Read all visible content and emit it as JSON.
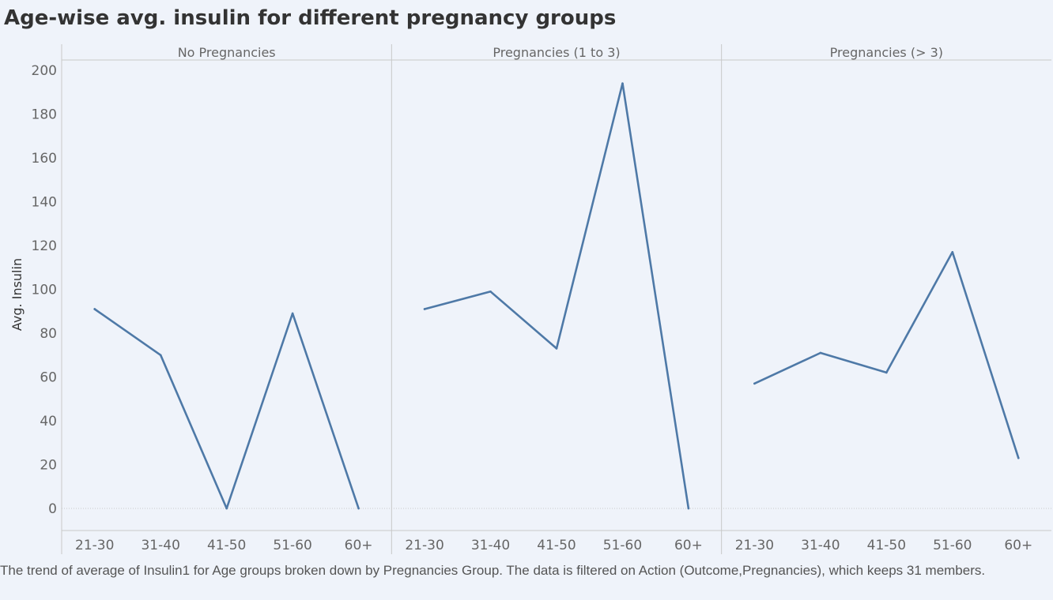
{
  "chart_data": {
    "type": "line",
    "title": "Age-wise avg. insulin for different pregnancy groups",
    "ylabel": "Avg. Insulin",
    "xlabel": "",
    "ylim": [
      -10,
      205
    ],
    "yticks": [
      0,
      20,
      40,
      60,
      80,
      100,
      120,
      140,
      160,
      180,
      200
    ],
    "categories": [
      "21-30",
      "31-40",
      "41-50",
      "51-60",
      "60+"
    ],
    "grid": "zero-line only",
    "line_color": "#4e79a7",
    "panels": [
      {
        "name": "No Pregnancies",
        "values": [
          91,
          70,
          0,
          89,
          0
        ]
      },
      {
        "name": "Pregnancies (1 to 3)",
        "values": [
          91,
          99,
          73,
          194,
          0
        ]
      },
      {
        "name": "Pregnancies (> 3)",
        "values": [
          57,
          71,
          62,
          117,
          23
        ]
      }
    ],
    "caption": "The trend of average of Insulin1 for Age groups broken down by Pregnancies Group. The data is filtered on Action (Outcome,Pregnancies), which keeps 31 members."
  }
}
